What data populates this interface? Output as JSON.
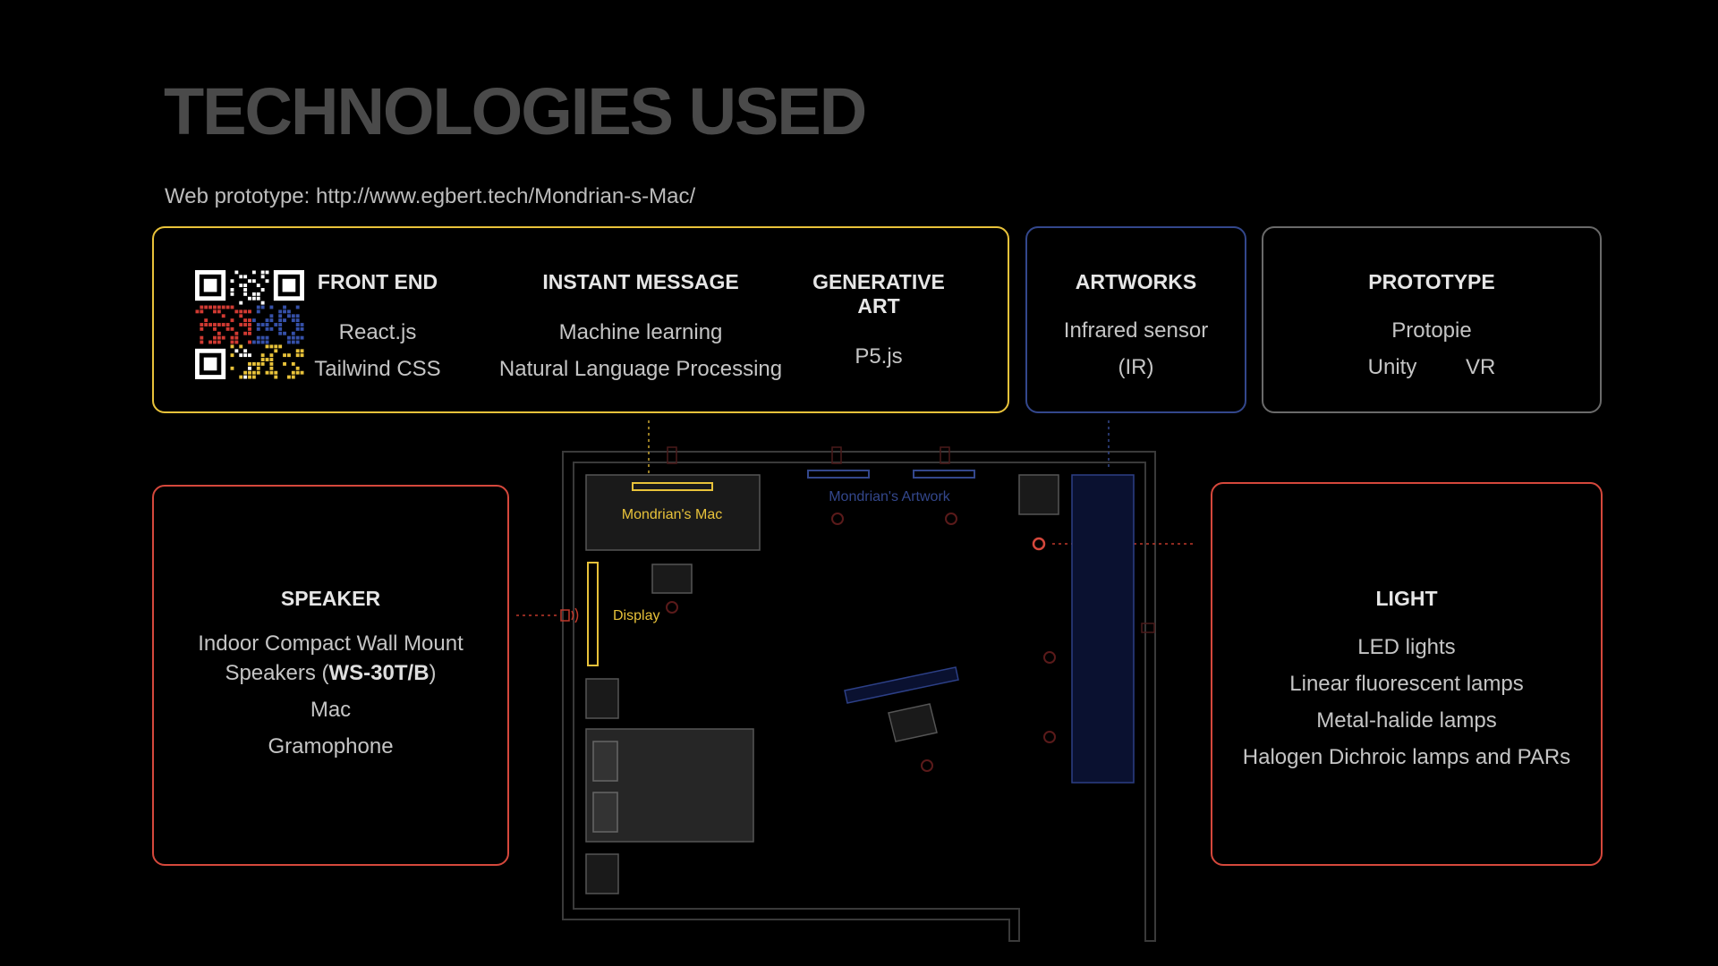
{
  "page": {
    "title": "TECHNOLOGIES USED",
    "subtitle": "Web prototype: http://www.egbert.tech/Mondrian-s-Mac/"
  },
  "tech_card": {
    "front_end": {
      "heading": "FRONT END",
      "items": [
        "React.js",
        "Tailwind CSS"
      ]
    },
    "instant_message": {
      "heading": "INSTANT MESSAGE",
      "items": [
        "Machine learning",
        "Natural Language Processing"
      ]
    },
    "generative_art": {
      "heading": "GENERATIVE ART",
      "items": [
        "P5.js"
      ]
    }
  },
  "artworks_card": {
    "heading": "ARTWORKS",
    "items": [
      "Infrared sensor",
      "(IR)"
    ]
  },
  "prototype_card": {
    "heading": "PROTOTYPE",
    "items": [
      "Protopie",
      "Unity",
      "VR"
    ]
  },
  "speaker_card": {
    "heading": "SPEAKER",
    "item1_prefix": "Indoor Compact Wall Mount Speakers (",
    "item1_bold": "WS-30T/B",
    "item1_suffix": ")",
    "items": [
      "Mac",
      "Gramophone"
    ]
  },
  "light_card": {
    "heading": "LIGHT",
    "items": [
      "LED lights",
      "Linear fluorescent lamps",
      "Metal-halide lamps",
      "Halogen Dichroic lamps and PARs"
    ]
  },
  "floorplan": {
    "labels": {
      "mac": "Mondrian's Mac",
      "artwork": "Mondrian's Artwork",
      "display": "Display"
    }
  },
  "colors": {
    "tech_border": "#e8c23a",
    "artworks_border": "#33478c",
    "prototype_border": "#6a6a6a",
    "speaker_light_border": "#d5483c",
    "title_gray": "#4a4a4a"
  }
}
